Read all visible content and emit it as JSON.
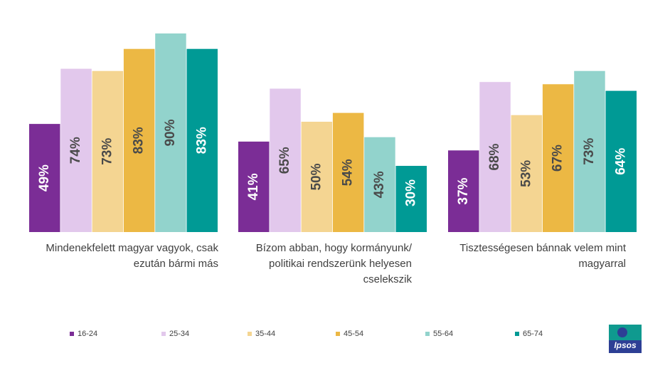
{
  "chart_data": {
    "type": "bar",
    "categories": [
      "Mindenekfelett magyar vagyok, csak ezután bármi más",
      "Bízom abban, hogy kormányunk/ politikai rendszerünk helyesen cselekszik",
      "Tisztességesen bánnak velem mint magyarral"
    ],
    "category_lines": [
      [
        "Mindenekfelett magyar vagyok, csak",
        "ezután bármi más"
      ],
      [
        "Bízom abban, hogy kormányunk/",
        "politikai rendszerünk helyesen",
        "cselekszik"
      ],
      [
        "Tisztességesen bánnak velem mint",
        "magyarral"
      ]
    ],
    "series": [
      {
        "name": "16-24",
        "color": "#7b2d96",
        "values": [
          49,
          41,
          37
        ],
        "labels": [
          "49%",
          "41%",
          "37%"
        ],
        "label_color": "#ffffff"
      },
      {
        "name": "25-34",
        "color": "#e2c8ec",
        "values": [
          74,
          65,
          68
        ],
        "labels": [
          "74%",
          "65%",
          "68%"
        ],
        "label_color": "#4a4a4a"
      },
      {
        "name": "35-44",
        "color": "#f4d592",
        "values": [
          73,
          50,
          53
        ],
        "labels": [
          "73%",
          "50%",
          "53%"
        ],
        "label_color": "#4a4a4a"
      },
      {
        "name": "45-54",
        "color": "#ecb844",
        "values": [
          83,
          54,
          67
        ],
        "labels": [
          "83%",
          "54%",
          "67%"
        ],
        "label_color": "#4a4a4a"
      },
      {
        "name": "55-64",
        "color": "#92d3cc",
        "values": [
          90,
          43,
          73
        ],
        "labels": [
          "90%",
          "43%",
          "73%"
        ],
        "label_color": "#4a4a4a"
      },
      {
        "name": "65-74",
        "color": "#009a95",
        "values": [
          83,
          30,
          64
        ],
        "labels": [
          "83%",
          "30%",
          "64%"
        ],
        "label_color": "#ffffff"
      }
    ],
    "ylim": [
      0,
      100
    ],
    "grid": false,
    "legend": "bottom"
  },
  "logo": {
    "text": "Ipsos"
  }
}
